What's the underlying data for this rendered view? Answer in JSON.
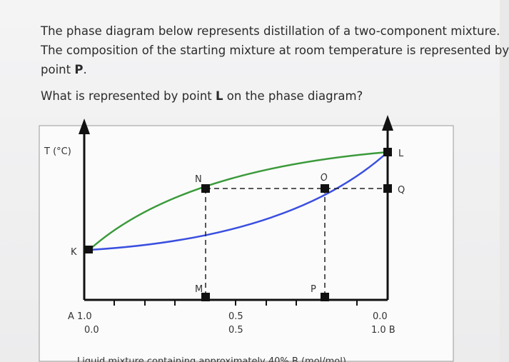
{
  "intro": {
    "line1": "The phase diagram below represents distillation of a two-component mixture.",
    "line2": "The composition of the starting mixture at room temperature is represented by",
    "line3": "point",
    "point": "P",
    "end": "."
  },
  "question": {
    "before": "What is represented by point",
    "point": "L",
    "after": "on the phase diagram?"
  },
  "diagram": {
    "y_label": "T (°C)",
    "points": {
      "K": "K",
      "N": "N",
      "O": "O",
      "L": "L",
      "Q": "Q",
      "M": "M",
      "P": "P"
    },
    "x_labels": {
      "left_top": "A 1.0",
      "left_bottom": "0.0",
      "mid_top": "0.5",
      "mid_bottom": "0.5",
      "right_top": "0.0",
      "right_bottom": "1.0 B"
    }
  },
  "option": "Liquid mixture containing approximately 40% B (mol/mol)"
}
